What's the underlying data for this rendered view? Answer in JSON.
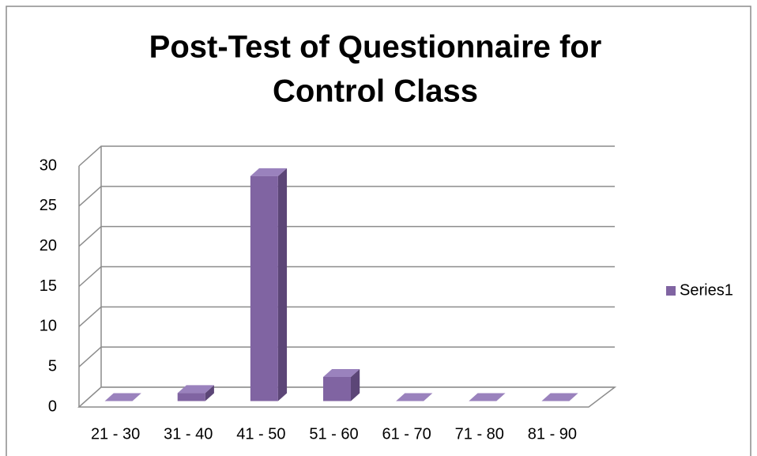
{
  "chart_data": {
    "type": "bar3d",
    "title": [
      "Post-Test of Questionnaire for",
      "Control Class"
    ],
    "categories": [
      "21 - 30",
      "31 - 40",
      "41 - 50",
      "51 - 60",
      "61 - 70",
      "71 - 80",
      "81 - 90"
    ],
    "series": [
      {
        "name": "Series1",
        "color": "#8064a2",
        "values": [
          0,
          1,
          28,
          3,
          0,
          0,
          0
        ]
      }
    ],
    "ylim": [
      0,
      30
    ],
    "yticks": [
      0,
      5,
      10,
      15,
      20,
      25,
      30
    ],
    "grid": true,
    "legend": "right"
  }
}
